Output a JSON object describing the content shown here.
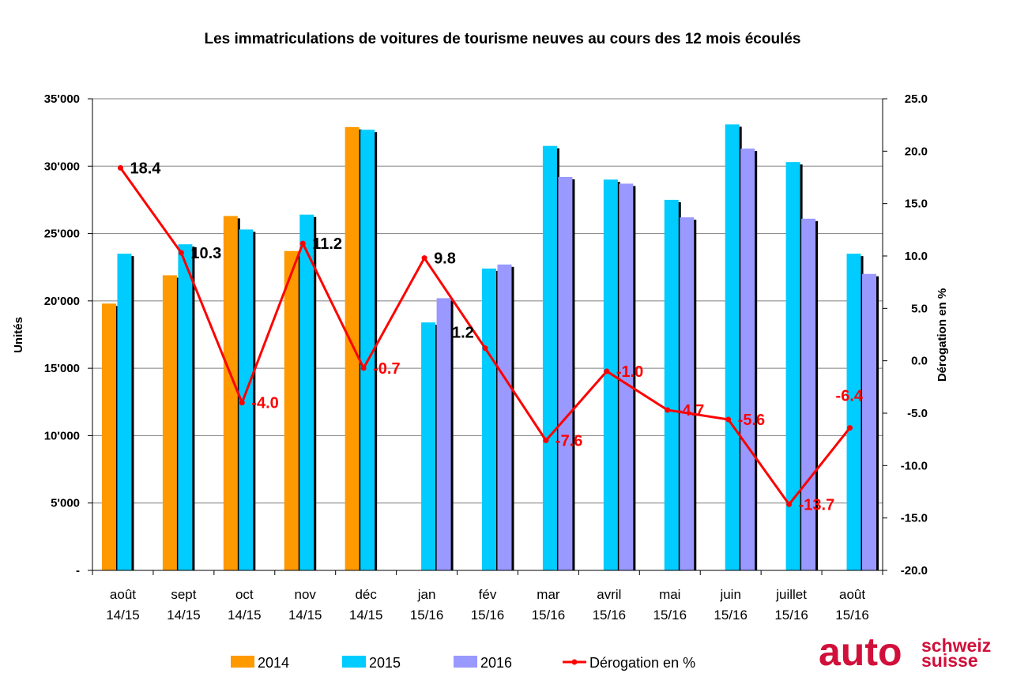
{
  "chart_data": {
    "type": "bar",
    "title": "Les immatriculations de voitures de tourisme neuves au cours des 12 mois écoulés",
    "ylabel": "Unités",
    "y2label": "Dérogation en %",
    "ylim": [
      0,
      35000
    ],
    "y2lim": [
      -20,
      25
    ],
    "yticks": [
      "-",
      "5'000",
      "10'000",
      "15'000",
      "20'000",
      "25'000",
      "30'000",
      "35'000"
    ],
    "y2ticks": [
      "-20.0",
      "-15.0",
      "-10.0",
      "-5.0",
      "0.0",
      "5.0",
      "10.0",
      "15.0",
      "20.0",
      "25.0"
    ],
    "grid": true,
    "legend_position": "bottom",
    "categories": [
      [
        "août",
        "14/15"
      ],
      [
        "sept",
        "14/15"
      ],
      [
        "oct",
        "14/15"
      ],
      [
        "nov",
        "14/15"
      ],
      [
        "déc",
        "14/15"
      ],
      [
        "jan",
        "15/16"
      ],
      [
        "fév",
        "15/16"
      ],
      [
        "mar",
        "15/16"
      ],
      [
        "avril",
        "15/16"
      ],
      [
        "mai",
        "15/16"
      ],
      [
        "juin",
        "15/16"
      ],
      [
        "juillet",
        "15/16"
      ],
      [
        "août",
        "15/16"
      ]
    ],
    "series": [
      {
        "name": "2014",
        "color": "#ff9900",
        "values": [
          19800,
          21900,
          26300,
          23700,
          32900,
          null,
          null,
          null,
          null,
          null,
          null,
          null,
          null
        ]
      },
      {
        "name": "2015",
        "color": "#00ccff",
        "values": [
          23500,
          24200,
          25300,
          26400,
          32700,
          18400,
          22400,
          31500,
          29000,
          27500,
          33100,
          30300,
          23500
        ]
      },
      {
        "name": "2016",
        "color": "#9999ff",
        "values": [
          null,
          null,
          null,
          null,
          null,
          20200,
          22700,
          29200,
          28700,
          26200,
          31300,
          26100,
          22000
        ]
      }
    ],
    "line": {
      "name": "Dérogation en %",
      "color": "#ff0000",
      "values": [
        18.4,
        10.3,
        -4.0,
        11.2,
        -0.7,
        9.8,
        1.2,
        -7.6,
        -1.0,
        -4.7,
        -5.6,
        -13.7,
        -6.4
      ],
      "labels": [
        "18.4",
        "10.3",
        "-4.0",
        "11.2",
        "-0.7",
        "9.8",
        "1.2",
        "-7.6",
        "-1.0",
        "-4.7",
        "-5.6",
        "-13.7",
        "-6.4"
      ]
    }
  },
  "logo": {
    "main": "auto",
    "line1": "schweiz",
    "line2": "suisse",
    "color": "#d0103a"
  }
}
